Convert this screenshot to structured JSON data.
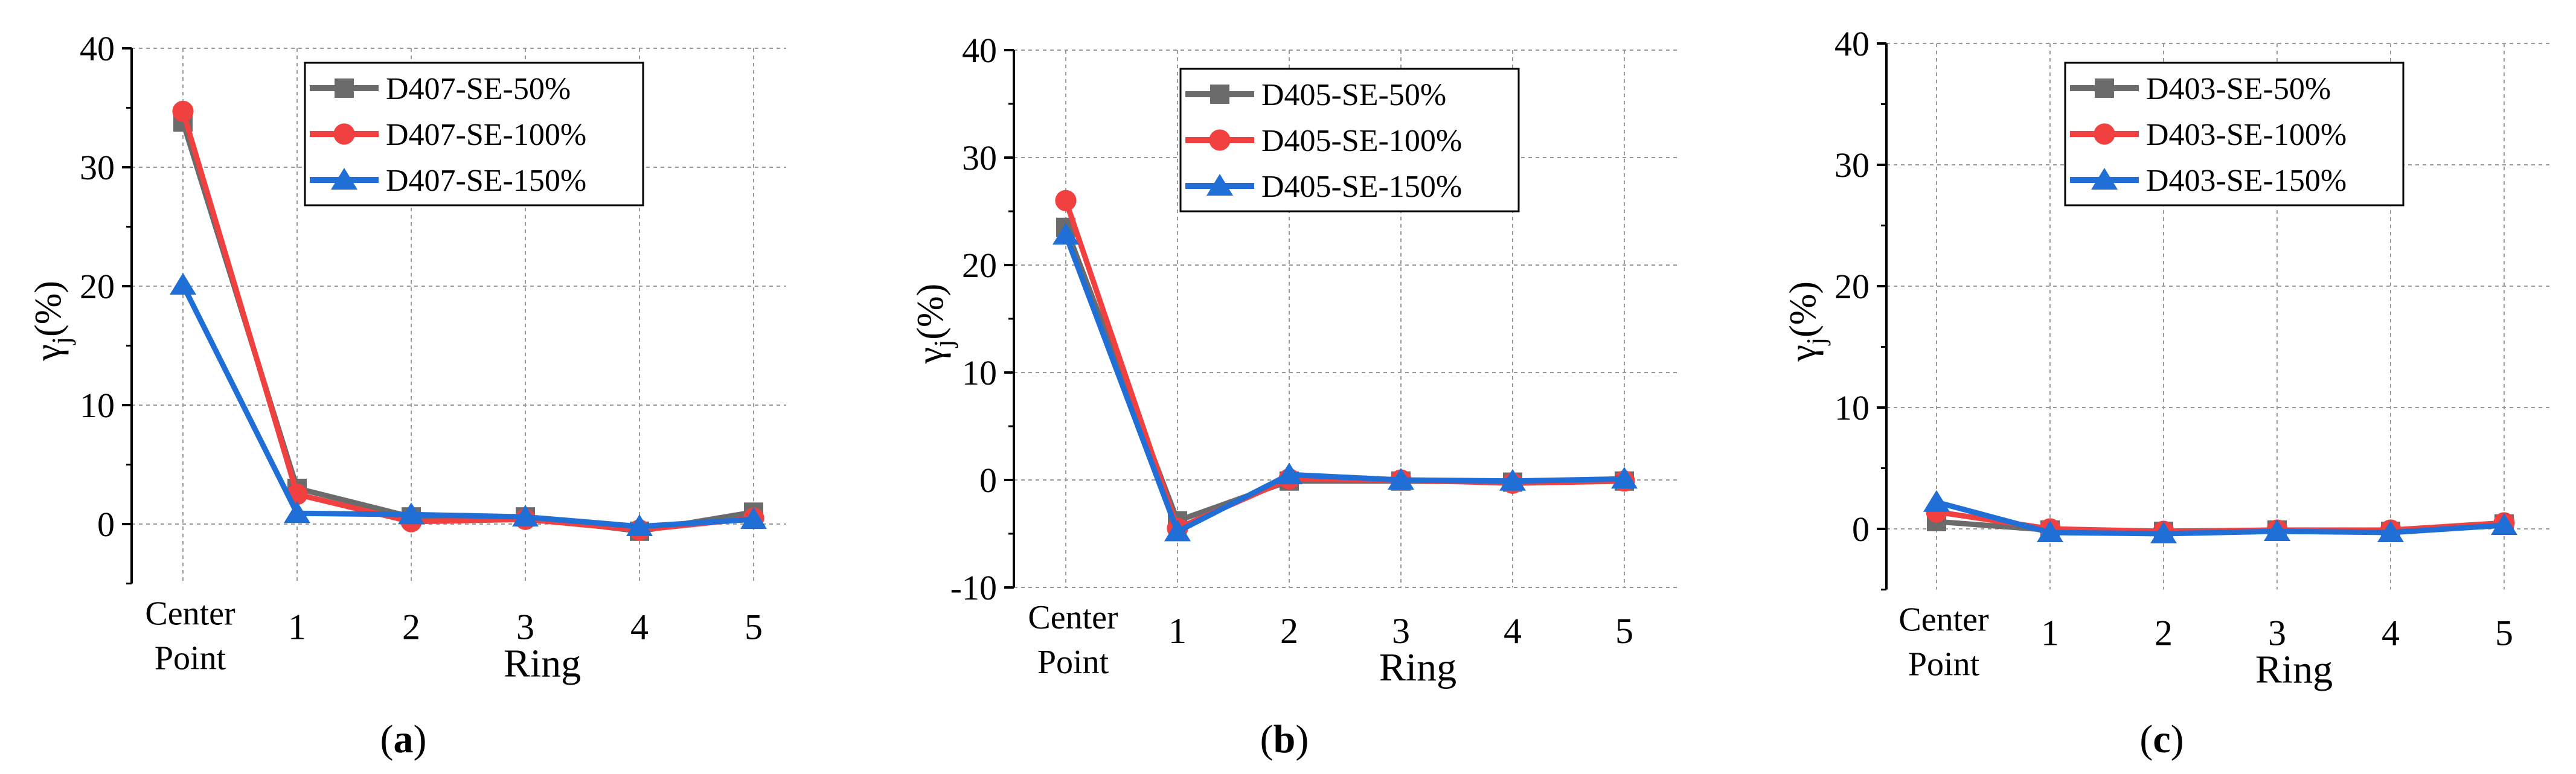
{
  "chart_data": [
    {
      "type": "line",
      "panel_label": "(a)",
      "title": "",
      "xlabel": "Ring",
      "ylabel": "γj(%)",
      "categories": [
        "Center\nPoint",
        "1",
        "2",
        "3",
        "4",
        "5"
      ],
      "ylim": [
        -5,
        40
      ],
      "yticks": [
        0,
        10,
        20,
        30,
        40
      ],
      "grid": true,
      "legend_position": "top-center",
      "series": [
        {
          "name": "D407-SE-50%",
          "marker": "square",
          "color": "#6b6b6b",
          "values": [
            33.8,
            3.0,
            0.6,
            0.6,
            -0.6,
            1.0
          ]
        },
        {
          "name": "D407-SE-100%",
          "marker": "circle",
          "color": "#f04040",
          "values": [
            34.7,
            2.5,
            0.2,
            0.4,
            -0.5,
            0.5
          ]
        },
        {
          "name": "D407-SE-150%",
          "marker": "triangle",
          "color": "#1f6fd6",
          "values": [
            20.1,
            0.9,
            0.8,
            0.6,
            -0.2,
            0.4
          ]
        }
      ]
    },
    {
      "type": "line",
      "panel_label": "(b)",
      "title": "",
      "xlabel": "Ring",
      "ylabel": "γj(%)",
      "categories": [
        "Center\nPoint",
        "1",
        "2",
        "3",
        "4",
        "5"
      ],
      "ylim": [
        -10,
        40
      ],
      "yticks": [
        -10,
        0,
        10,
        20,
        30,
        40
      ],
      "grid": true,
      "legend_position": "top-center",
      "series": [
        {
          "name": "D405-SE-50%",
          "marker": "square",
          "color": "#6b6b6b",
          "values": [
            23.5,
            -3.8,
            -0.1,
            -0.1,
            -0.2,
            -0.1
          ]
        },
        {
          "name": "D405-SE-100%",
          "marker": "circle",
          "color": "#f04040",
          "values": [
            26.0,
            -4.5,
            0.1,
            0.0,
            -0.3,
            -0.1
          ]
        },
        {
          "name": "D405-SE-150%",
          "marker": "triangle",
          "color": "#1f6fd6",
          "values": [
            22.8,
            -4.8,
            0.5,
            0.0,
            -0.1,
            0.1
          ]
        }
      ]
    },
    {
      "type": "line",
      "panel_label": "(c)",
      "title": "",
      "xlabel": "Ring",
      "ylabel": "γj(%)",
      "categories": [
        "Center\nPoint",
        "1",
        "2",
        "3",
        "4",
        "5"
      ],
      "ylim": [
        -5,
        40
      ],
      "yticks": [
        0,
        10,
        20,
        30,
        40
      ],
      "grid": true,
      "legend_position": "top-center",
      "series": [
        {
          "name": "D403-SE-50%",
          "marker": "square",
          "color": "#6b6b6b",
          "values": [
            0.6,
            -0.1,
            -0.2,
            -0.1,
            -0.2,
            0.4
          ]
        },
        {
          "name": "D403-SE-100%",
          "marker": "circle",
          "color": "#f04040",
          "values": [
            1.4,
            0.0,
            -0.2,
            -0.1,
            -0.1,
            0.5
          ]
        },
        {
          "name": "D403-SE-150%",
          "marker": "triangle",
          "color": "#1f6fd6",
          "values": [
            2.2,
            -0.3,
            -0.4,
            -0.2,
            -0.3,
            0.3
          ]
        }
      ]
    }
  ]
}
